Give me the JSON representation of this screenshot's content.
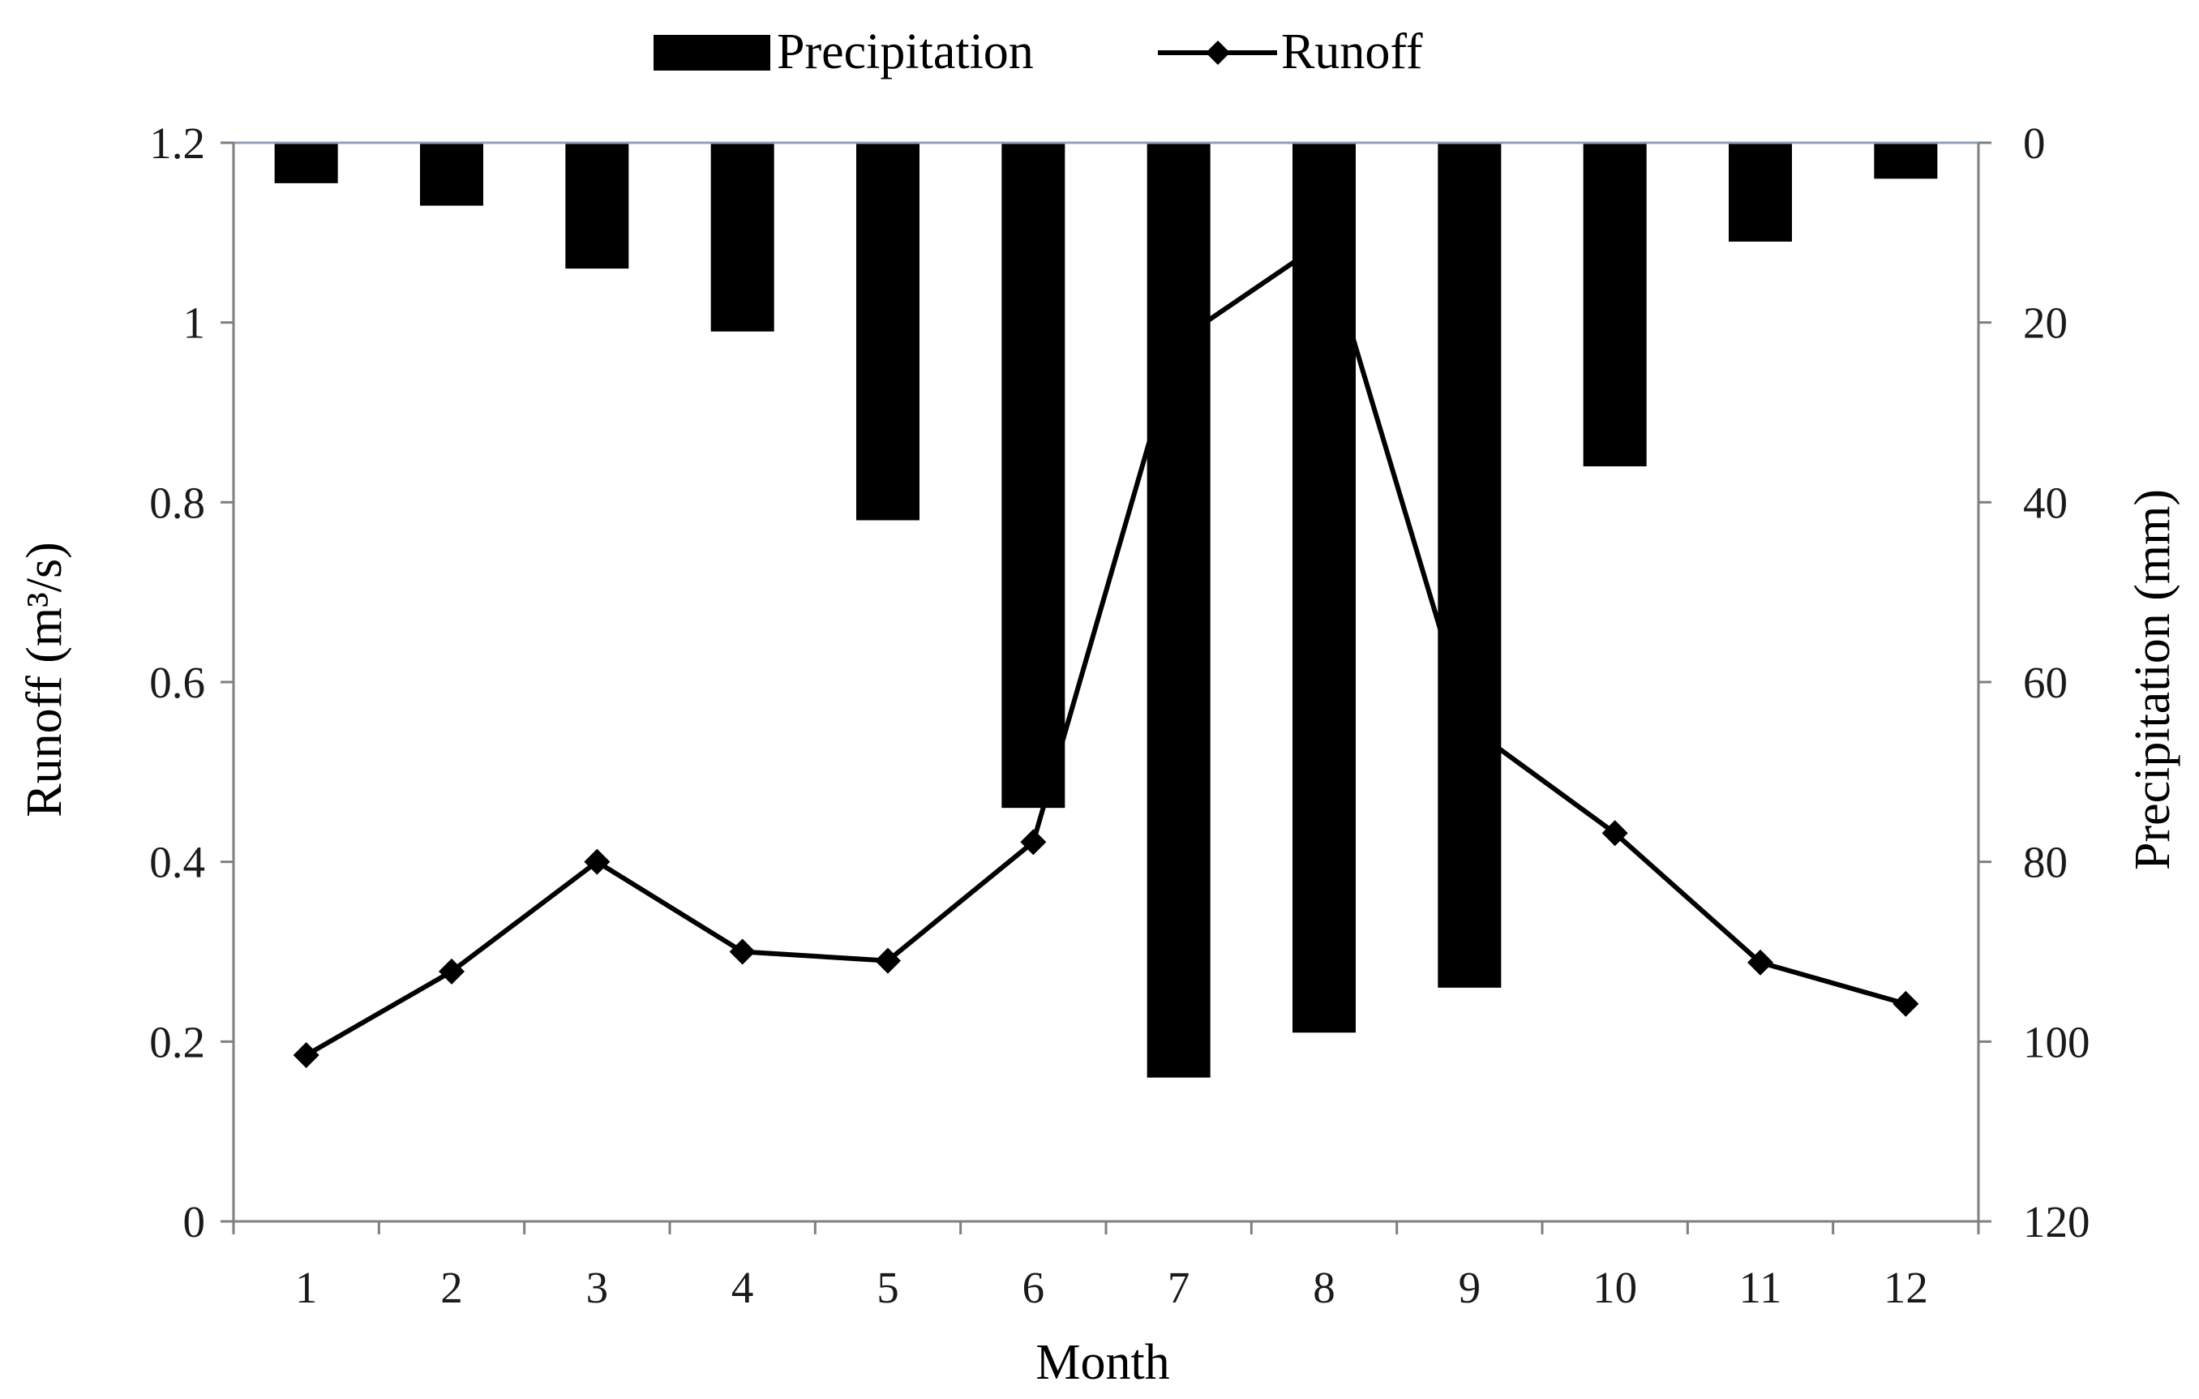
{
  "chart_data": {
    "type": "bar+line",
    "title": "",
    "xlabel": "Month",
    "ylabel_left": "Runoff (m³/s)",
    "ylabel_right": "Precipitation (mm)",
    "categories": [
      "1",
      "2",
      "3",
      "4",
      "5",
      "6",
      "7",
      "8",
      "9",
      "10",
      "11",
      "12"
    ],
    "left_axis": {
      "min": 0,
      "max": 1.2,
      "ticks": [
        "0",
        "0.2",
        "0.4",
        "0.6",
        "0.8",
        "1",
        "1.2"
      ]
    },
    "right_axis": {
      "min": 0,
      "max": 120,
      "inverted": true,
      "ticks": [
        "0",
        "20",
        "40",
        "60",
        "80",
        "100",
        "120"
      ]
    },
    "legend": {
      "position": "top",
      "entries": [
        {
          "name": "Precipitation",
          "symbol": "bar"
        },
        {
          "name": "Runoff",
          "symbol": "line-diamond"
        }
      ]
    },
    "series": [
      {
        "name": "Precipitation",
        "type": "bar",
        "axis": "right",
        "color": "#000000",
        "values": [
          4.5,
          7,
          14,
          21,
          42,
          74,
          104,
          99,
          94,
          36,
          11,
          4
        ]
      },
      {
        "name": "Runoff",
        "type": "line",
        "axis": "left",
        "marker": "diamond",
        "color": "#000000",
        "values": [
          0.185,
          0.278,
          0.4,
          0.3,
          0.29,
          0.422,
          0.98,
          1.09,
          0.55,
          0.432,
          0.288,
          0.242
        ]
      }
    ],
    "grid": false,
    "top_border_color": "#8fa3b8"
  }
}
